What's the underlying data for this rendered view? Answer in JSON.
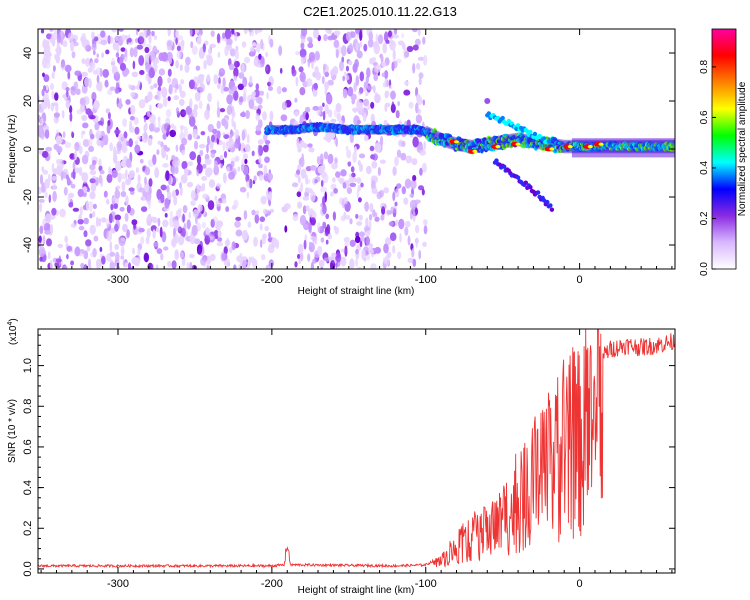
{
  "title": "C2E1.2025.010.11.22.G13",
  "chart_data": [
    {
      "type": "heatmap",
      "xlabel": "Height of straight line (km)",
      "ylabel": "Frequency (Hz)",
      "xlim": [
        -352,
        62
      ],
      "ylim": [
        -50,
        50
      ],
      "x_ticks": [
        -300,
        -200,
        -100,
        0
      ],
      "y_ticks": [
        -40,
        -20,
        0,
        20,
        40
      ],
      "colorbar": {
        "label": "Normalized spectral amplitude",
        "range": [
          0,
          0.95
        ],
        "ticks": [
          0.0,
          0.2,
          0.4,
          0.6,
          0.8
        ],
        "colors": [
          "#ffffff",
          "#d9b8ff",
          "#8a2be2",
          "#0000ff",
          "#00ffff",
          "#00ff00",
          "#ffff00",
          "#ff8000",
          "#ff0000",
          "#ff00a0"
        ]
      },
      "features": {
        "noise_band_x": [
          -352,
          -100
        ],
        "noise_gap_x": [
          -200,
          -185
        ],
        "signal_track": [
          [
            -202,
            8
          ],
          [
            -195,
            8
          ],
          [
            -185,
            8
          ],
          [
            -175,
            9
          ],
          [
            -165,
            9
          ],
          [
            -150,
            8
          ],
          [
            -135,
            8
          ],
          [
            -120,
            8
          ],
          [
            -105,
            8
          ],
          [
            -100,
            7
          ],
          [
            -90,
            4
          ],
          [
            -80,
            2
          ],
          [
            -70,
            1
          ],
          [
            -60,
            2
          ],
          [
            -50,
            3
          ],
          [
            -40,
            4
          ],
          [
            -30,
            3
          ],
          [
            -20,
            2
          ],
          [
            -10,
            1
          ],
          [
            0,
            1
          ],
          [
            10,
            1
          ],
          [
            20,
            1
          ],
          [
            40,
            1
          ],
          [
            62,
            1
          ]
        ],
        "upper_branch": [
          [
            -60,
            14
          ],
          [
            -50,
            12
          ],
          [
            -40,
            9
          ],
          [
            -30,
            6
          ],
          [
            -20,
            3
          ]
        ],
        "lower_branch": [
          [
            -55,
            -5
          ],
          [
            -45,
            -10
          ],
          [
            -35,
            -15
          ],
          [
            -25,
            -20
          ],
          [
            -18,
            -25
          ]
        ]
      }
    },
    {
      "type": "line",
      "xlabel": "Height of straight line (km)",
      "ylabel": "SNR (10 * v/v)",
      "y_multiplier_label": "(x10",
      "y_multiplier_exp": "4",
      "xlim": [
        -352,
        62
      ],
      "ylim": [
        -0.02,
        1.18
      ],
      "x_ticks": [
        -300,
        -200,
        -100,
        0
      ],
      "y_ticks": [
        0.0,
        0.2,
        0.4,
        0.6,
        0.8,
        1.0
      ],
      "y_tick_labels": [
        "0.0",
        "0.2",
        "0.4",
        "0.6",
        "0.8",
        "1.0"
      ],
      "color": "#ee3333",
      "envelope": [
        [
          -352,
          0.015
        ],
        [
          -200,
          0.015
        ],
        [
          -192,
          0.02
        ],
        [
          -190,
          0.09
        ],
        [
          -188,
          0.02
        ],
        [
          -180,
          0.02
        ],
        [
          -120,
          0.015
        ],
        [
          -100,
          0.02
        ],
        [
          -90,
          0.06
        ],
        [
          -80,
          0.15
        ],
        [
          -70,
          0.22
        ],
        [
          -60,
          0.28
        ],
        [
          -50,
          0.35
        ],
        [
          -40,
          0.48
        ],
        [
          -30,
          0.62
        ],
        [
          -20,
          0.72
        ],
        [
          -10,
          0.85
        ],
        [
          0,
          0.95
        ],
        [
          10,
          1.02
        ],
        [
          20,
          1.08
        ],
        [
          30,
          1.1
        ],
        [
          40,
          1.09
        ],
        [
          50,
          1.1
        ],
        [
          62,
          1.12
        ]
      ]
    }
  ]
}
